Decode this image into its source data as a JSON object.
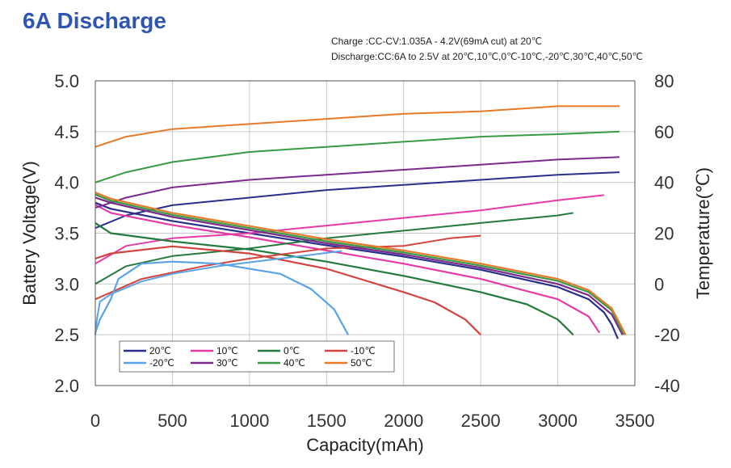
{
  "title": "6A Discharge",
  "conditions": [
    "Charge :CC-CV:1.035A - 4.2V(69mA cut) at 20℃",
    "Discharge:CC:6A to 2.5V at 20℃,10℃,0℃-10℃,-20℃,30℃,40℃,50℃"
  ],
  "chart_data": {
    "type": "line",
    "title": "6A Discharge",
    "xlabel": "Capacity(mAh)",
    "ylabel": "Battery Voltage(V)",
    "y2label": "Temperature(℃)",
    "xlim": [
      0,
      3500
    ],
    "ylim": [
      2.0,
      5.0
    ],
    "y2lim": [
      -40,
      80
    ],
    "x_ticks": [
      "0",
      "500",
      "1000",
      "1500",
      "2000",
      "2500",
      "3000",
      "3500"
    ],
    "y_ticks": [
      "2.0",
      "2.5",
      "3.0",
      "3.5",
      "4.0",
      "4.5",
      "5.0"
    ],
    "y2_ticks": [
      "-40",
      "-20",
      "0",
      "20",
      "40",
      "60",
      "80"
    ],
    "grid": true,
    "legend_position": "bottom-left",
    "series": [
      {
        "name": "20℃",
        "color": "#2b2f8c",
        "voltage": [
          [
            0,
            3.8
          ],
          [
            100,
            3.74
          ],
          [
            500,
            3.62
          ],
          [
            1000,
            3.5
          ],
          [
            1500,
            3.38
          ],
          [
            2000,
            3.27
          ],
          [
            2500,
            3.14
          ],
          [
            3000,
            2.97
          ],
          [
            3200,
            2.85
          ],
          [
            3300,
            2.72
          ],
          [
            3350,
            2.6
          ],
          [
            3390,
            2.46
          ]
        ],
        "temperature": [
          [
            0,
            22
          ],
          [
            200,
            27
          ],
          [
            500,
            31
          ],
          [
            1000,
            34
          ],
          [
            1500,
            37
          ],
          [
            2000,
            39
          ],
          [
            2500,
            41
          ],
          [
            3000,
            43
          ],
          [
            3400,
            44
          ]
        ]
      },
      {
        "name": "10℃",
        "color": "#e63aa6",
        "voltage": [
          [
            0,
            3.78
          ],
          [
            100,
            3.7
          ],
          [
            500,
            3.58
          ],
          [
            1000,
            3.46
          ],
          [
            1500,
            3.33
          ],
          [
            2000,
            3.2
          ],
          [
            2500,
            3.05
          ],
          [
            3000,
            2.85
          ],
          [
            3200,
            2.68
          ],
          [
            3270,
            2.52
          ]
        ],
        "temperature": [
          [
            0,
            8
          ],
          [
            200,
            15
          ],
          [
            500,
            18
          ],
          [
            1000,
            20
          ],
          [
            1500,
            23
          ],
          [
            2000,
            26
          ],
          [
            2500,
            29
          ],
          [
            3000,
            33
          ],
          [
            3300,
            35
          ]
        ]
      },
      {
        "name": "0℃",
        "color": "#247a3e",
        "voltage": [
          [
            0,
            3.6
          ],
          [
            100,
            3.5
          ],
          [
            500,
            3.42
          ],
          [
            1000,
            3.34
          ],
          [
            1500,
            3.22
          ],
          [
            2000,
            3.08
          ],
          [
            2500,
            2.92
          ],
          [
            2800,
            2.8
          ],
          [
            3000,
            2.65
          ],
          [
            3100,
            2.5
          ]
        ],
        "temperature": [
          [
            0,
            0
          ],
          [
            200,
            7
          ],
          [
            500,
            11
          ],
          [
            1000,
            14
          ],
          [
            1500,
            18
          ],
          [
            2000,
            21
          ],
          [
            2500,
            24
          ],
          [
            3000,
            27
          ],
          [
            3100,
            28
          ]
        ]
      },
      {
        "name": "-10℃",
        "color": "#d2443e",
        "voltage": [
          [
            0,
            3.25
          ],
          [
            100,
            3.3
          ],
          [
            500,
            3.37
          ],
          [
            1000,
            3.3
          ],
          [
            1500,
            3.15
          ],
          [
            2000,
            2.92
          ],
          [
            2200,
            2.82
          ],
          [
            2400,
            2.65
          ],
          [
            2500,
            2.5
          ]
        ],
        "temperature": [
          [
            0,
            -6
          ],
          [
            300,
            2
          ],
          [
            700,
            7
          ],
          [
            1000,
            10
          ],
          [
            1500,
            14
          ],
          [
            2000,
            15
          ],
          [
            2300,
            18
          ],
          [
            2500,
            19
          ]
        ]
      },
      {
        "name": "-20℃",
        "color": "#5aa3e6",
        "voltage": [
          [
            0,
            2.52
          ],
          [
            30,
            2.65
          ],
          [
            100,
            2.85
          ],
          [
            150,
            3.05
          ],
          [
            300,
            3.2
          ],
          [
            500,
            3.22
          ],
          [
            800,
            3.2
          ],
          [
            1200,
            3.1
          ],
          [
            1400,
            2.95
          ],
          [
            1550,
            2.75
          ],
          [
            1640,
            2.5
          ]
        ],
        "temperature": [
          [
            0,
            -20
          ],
          [
            10,
            -14
          ],
          [
            30,
            -7
          ],
          [
            100,
            -4
          ],
          [
            300,
            1
          ],
          [
            500,
            4
          ],
          [
            800,
            7
          ],
          [
            1200,
            10
          ],
          [
            1600,
            13
          ]
        ]
      },
      {
        "name": "30℃",
        "color": "#7a2a8c",
        "voltage": [
          [
            0,
            3.85
          ],
          [
            100,
            3.8
          ],
          [
            500,
            3.66
          ],
          [
            1000,
            3.53
          ],
          [
            1500,
            3.4
          ],
          [
            2000,
            3.29
          ],
          [
            2500,
            3.16
          ],
          [
            3000,
            3.0
          ],
          [
            3200,
            2.89
          ],
          [
            3350,
            2.7
          ],
          [
            3420,
            2.5
          ]
        ],
        "temperature": [
          [
            0,
            30
          ],
          [
            200,
            34
          ],
          [
            500,
            38
          ],
          [
            1000,
            41
          ],
          [
            1500,
            43
          ],
          [
            2000,
            45
          ],
          [
            2500,
            47
          ],
          [
            3000,
            49
          ],
          [
            3400,
            50
          ]
        ]
      },
      {
        "name": "40℃",
        "color": "#3a9a45",
        "voltage": [
          [
            0,
            3.88
          ],
          [
            100,
            3.82
          ],
          [
            500,
            3.68
          ],
          [
            1000,
            3.55
          ],
          [
            1500,
            3.42
          ],
          [
            2000,
            3.31
          ],
          [
            2500,
            3.18
          ],
          [
            3000,
            3.03
          ],
          [
            3200,
            2.92
          ],
          [
            3350,
            2.74
          ],
          [
            3430,
            2.5
          ]
        ],
        "temperature": [
          [
            0,
            40
          ],
          [
            200,
            44
          ],
          [
            500,
            48
          ],
          [
            1000,
            52
          ],
          [
            1500,
            54
          ],
          [
            2000,
            56
          ],
          [
            2500,
            58
          ],
          [
            3000,
            59
          ],
          [
            3400,
            60
          ]
        ]
      },
      {
        "name": "50℃",
        "color": "#e67a28",
        "voltage": [
          [
            0,
            3.9
          ],
          [
            100,
            3.84
          ],
          [
            500,
            3.7
          ],
          [
            1000,
            3.57
          ],
          [
            1500,
            3.44
          ],
          [
            2000,
            3.33
          ],
          [
            2500,
            3.2
          ],
          [
            3000,
            3.05
          ],
          [
            3200,
            2.94
          ],
          [
            3350,
            2.76
          ],
          [
            3440,
            2.5
          ]
        ],
        "temperature": [
          [
            0,
            54
          ],
          [
            200,
            58
          ],
          [
            500,
            61
          ],
          [
            1000,
            63
          ],
          [
            1500,
            65
          ],
          [
            2000,
            67
          ],
          [
            2500,
            68
          ],
          [
            3000,
            70
          ],
          [
            3400,
            70
          ]
        ]
      }
    ]
  }
}
